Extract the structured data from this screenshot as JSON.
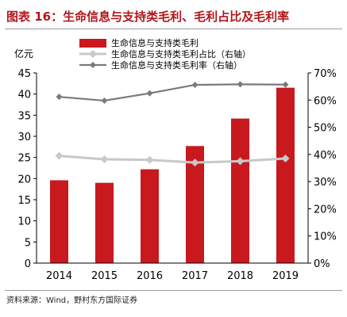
{
  "title": "图表 16：生命信息与支持类毛利、毛利占比及毛利率",
  "source": "资料来源：Wind，野村东方国际证券",
  "colors": {
    "bar": "#c8191f",
    "share_line": "#c8c8c8",
    "margin_line": "#7a7a7a",
    "title": "#b3151b"
  },
  "chart_data": {
    "type": "bar",
    "categories": [
      "2014",
      "2015",
      "2016",
      "2017",
      "2018",
      "2019"
    ],
    "y_unit_label": "亿元",
    "ylim": [
      0,
      45
    ],
    "y_ticks": [
      0,
      5,
      10,
      15,
      20,
      25,
      30,
      35,
      40,
      45
    ],
    "y2lim": [
      0,
      70
    ],
    "y2_ticks": [
      "0%",
      "10%",
      "20%",
      "30%",
      "40%",
      "50%",
      "60%",
      "70%"
    ],
    "y2_tick_values": [
      0,
      10,
      20,
      30,
      40,
      50,
      60,
      70
    ],
    "legend_position": "top-left",
    "grid": false,
    "series": [
      {
        "name": "生命信息与支持类毛利",
        "type": "bar",
        "axis": "left",
        "values": [
          19.6,
          19.0,
          22.2,
          27.7,
          34.2,
          41.5
        ]
      },
      {
        "name": "生命信息与支持类毛利占比（右轴）",
        "type": "line",
        "axis": "right",
        "marker": "diamond",
        "values": [
          39.5,
          38.2,
          38.0,
          37.0,
          37.5,
          38.5
        ]
      },
      {
        "name": "生命信息与支持类毛利率（右轴）",
        "type": "line",
        "axis": "right",
        "marker": "diamond",
        "values": [
          61.2,
          59.8,
          62.5,
          65.6,
          65.8,
          65.7
        ]
      }
    ]
  }
}
